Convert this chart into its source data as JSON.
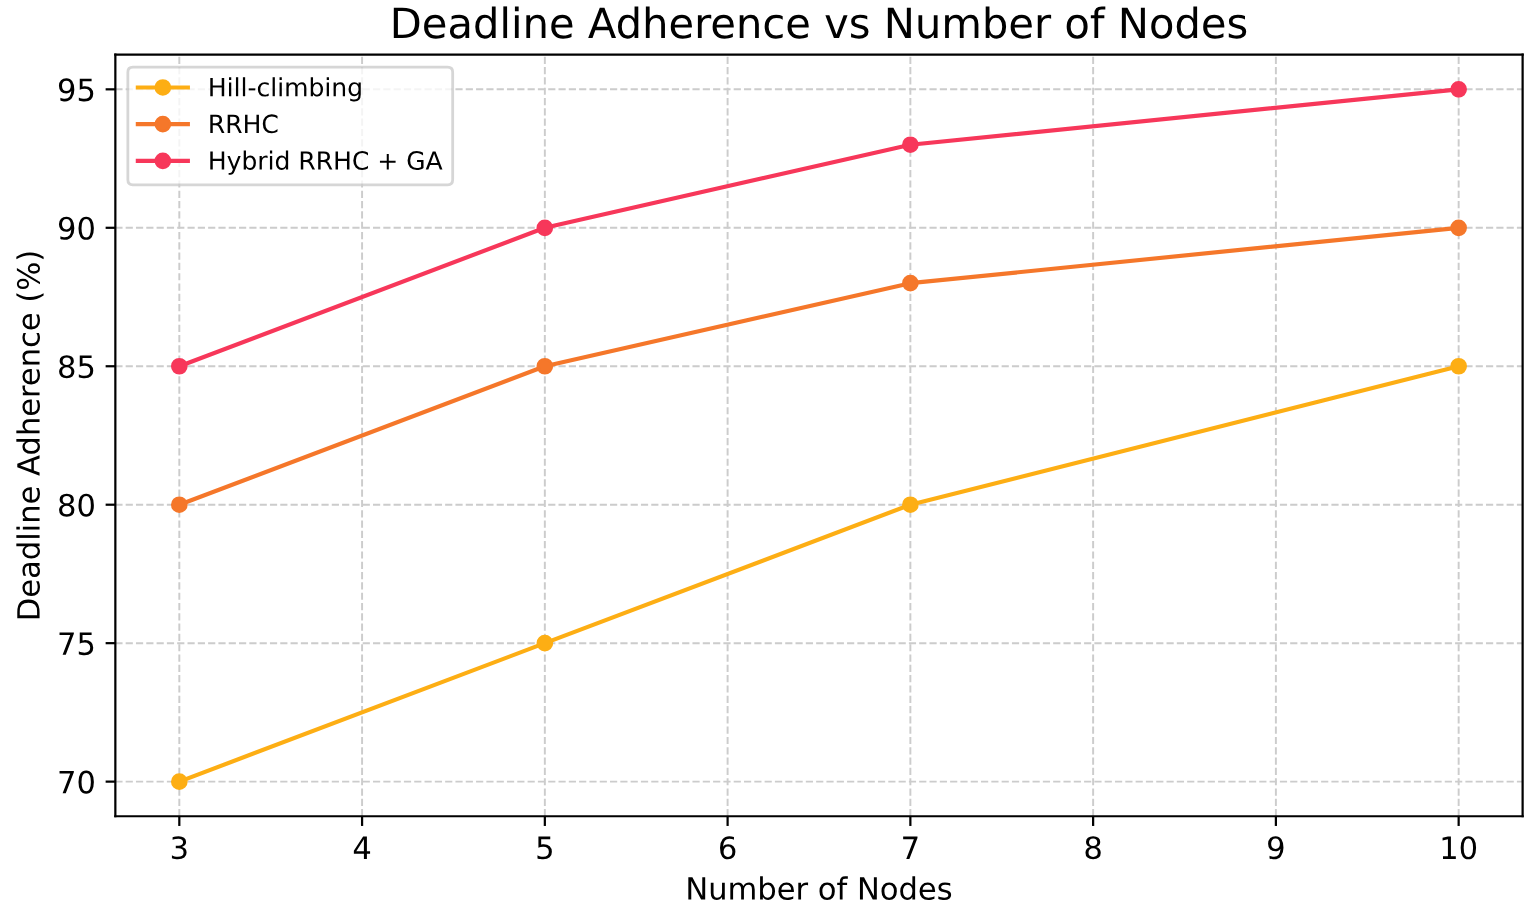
{
  "chart_data": {
    "type": "line",
    "title": "Deadline Adherence vs Number of Nodes",
    "xlabel": "Number of Nodes",
    "ylabel": "Deadline Adherence (%)",
    "x": [
      3,
      5,
      7,
      10
    ],
    "series": [
      {
        "name": "Hill-climbing",
        "color": "#fdae14",
        "values": [
          70,
          75,
          80,
          85
        ]
      },
      {
        "name": "RRHC",
        "color": "#f5772a",
        "values": [
          80,
          85,
          88,
          90
        ]
      },
      {
        "name": "Hybrid RRHC + GA",
        "color": "#f7375a",
        "values": [
          85,
          90,
          93,
          95
        ]
      }
    ],
    "xlim": [
      2.65,
      10.35
    ],
    "ylim": [
      68.75,
      96.25
    ],
    "xticks": [
      3,
      4,
      5,
      6,
      7,
      8,
      9,
      10
    ],
    "yticks": [
      70,
      75,
      80,
      85,
      90,
      95
    ],
    "grid": true,
    "legend": "top left",
    "marker": "circle",
    "line_style": "solid"
  }
}
